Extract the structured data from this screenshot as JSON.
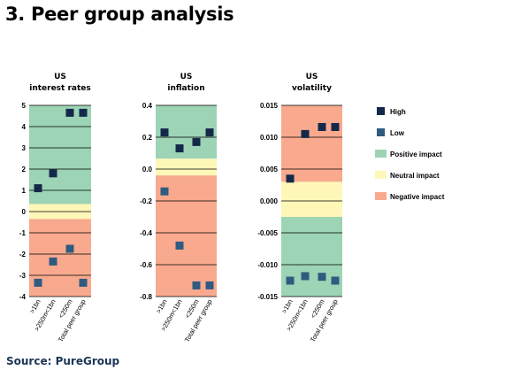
{
  "page": {
    "title": "3. Peer group analysis",
    "source": "Source: PureGroup"
  },
  "colors": {
    "high": "#14294a",
    "low": "#2f5b80",
    "positive": "#9cd4b5",
    "neutral": "#fff7b8",
    "negative": "#f8a98e"
  },
  "legend": [
    {
      "key": "high",
      "label": "High",
      "kind": "marker"
    },
    {
      "key": "low",
      "label": "Low",
      "kind": "marker"
    },
    {
      "key": "positive",
      "label": "Positive impact",
      "kind": "band"
    },
    {
      "key": "neutral",
      "label": "Neutral impact",
      "kind": "band"
    },
    {
      "key": "negative",
      "label": "Negative impact",
      "kind": "band"
    }
  ],
  "chart_data": [
    {
      "type": "scatter",
      "title": [
        "US",
        "interest rates"
      ],
      "categories": [
        ">1bn",
        ">250m<1bn",
        "<250m",
        "Total peer group"
      ],
      "ylim": [
        -4,
        5
      ],
      "yticks": [
        "5",
        "4",
        "3",
        "2",
        "1",
        "0",
        "-1",
        "-2",
        "-3",
        "-4"
      ],
      "bands": [
        {
          "impact": "positive",
          "from": 0.35,
          "to": 5
        },
        {
          "impact": "neutral",
          "from": -0.35,
          "to": 0.35
        },
        {
          "impact": "negative",
          "from": -4,
          "to": -0.35
        }
      ],
      "series": [
        {
          "name": "High",
          "values": [
            1.1,
            1.8,
            4.65,
            4.65
          ]
        },
        {
          "name": "Low",
          "values": [
            -3.35,
            -2.35,
            -1.75,
            -3.35
          ]
        }
      ]
    },
    {
      "type": "scatter",
      "title": [
        "US",
        "inflation"
      ],
      "categories": [
        ">1bn",
        ">250m<1bn",
        "<250m",
        "Total peer group"
      ],
      "ylim": [
        -0.8,
        0.4
      ],
      "yticks": [
        "0.4",
        "0.2",
        "0.0",
        "-0.2",
        "-0.4",
        "-0.6",
        "-0.8"
      ],
      "bands": [
        {
          "impact": "positive",
          "from": 0.065,
          "to": 0.4
        },
        {
          "impact": "neutral",
          "from": -0.04,
          "to": 0.065
        },
        {
          "impact": "negative",
          "from": -0.8,
          "to": -0.04
        }
      ],
      "series": [
        {
          "name": "High",
          "values": [
            0.23,
            0.13,
            0.17,
            0.23
          ]
        },
        {
          "name": "Low",
          "values": [
            -0.14,
            -0.48,
            -0.73,
            -0.73
          ]
        }
      ]
    },
    {
      "type": "scatter",
      "title": [
        "US",
        "volatility"
      ],
      "categories": [
        ">1bn",
        ">250m<1bn",
        "<250m",
        "Total peer group"
      ],
      "ylim": [
        -0.015,
        0.015
      ],
      "yticks": [
        "0.015",
        "0.010",
        "0.005",
        "0.000",
        "-0.005",
        "-0.010",
        "-0.015"
      ],
      "bands": [
        {
          "impact": "negative",
          "from": 0.003,
          "to": 0.015
        },
        {
          "impact": "neutral",
          "from": -0.0025,
          "to": 0.003
        },
        {
          "impact": "positive",
          "from": -0.015,
          "to": -0.0025
        }
      ],
      "series": [
        {
          "name": "High",
          "values": [
            0.0035,
            0.0105,
            0.0116,
            0.0116
          ]
        },
        {
          "name": "Low",
          "values": [
            -0.0125,
            -0.0118,
            -0.0119,
            -0.0125
          ]
        }
      ]
    }
  ]
}
